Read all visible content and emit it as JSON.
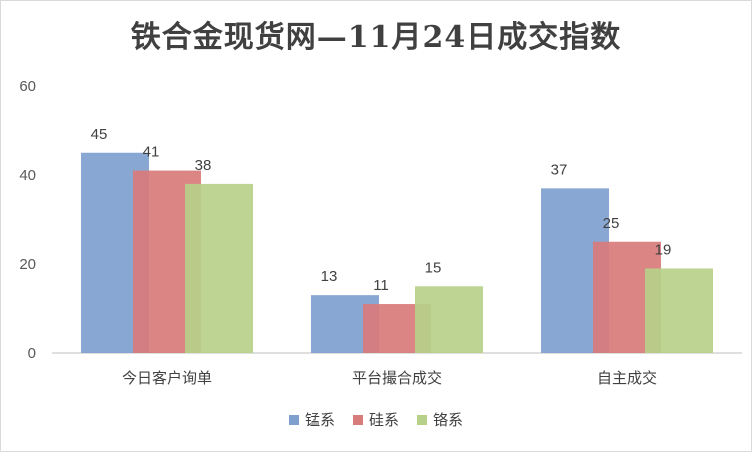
{
  "chart_data": {
    "type": "bar",
    "title": "铁合金现货网—11月24日成交指数",
    "categories": [
      "今日客户询单",
      "平台撮合成交",
      "自主成交"
    ],
    "series": [
      {
        "name": "锰系",
        "values": [
          45,
          13,
          37
        ],
        "color": "#7f9fcf"
      },
      {
        "name": "硅系",
        "values": [
          41,
          11,
          25
        ],
        "color": "#d87b7b"
      },
      {
        "name": "铬系",
        "values": [
          38,
          15,
          19
        ],
        "color": "#b7d08a"
      }
    ],
    "ylim": [
      0,
      60
    ],
    "yticks": [
      0,
      20,
      40,
      60
    ],
    "xlabel": "",
    "ylabel": "",
    "grid": false,
    "legend": "bottom",
    "data_labels": true
  }
}
